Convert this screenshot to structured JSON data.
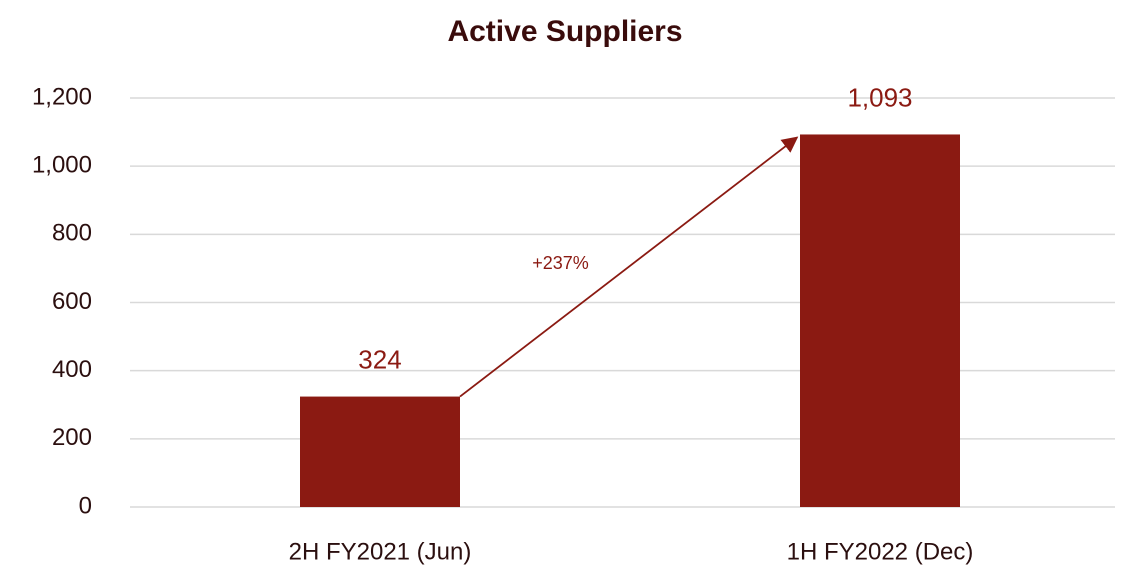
{
  "chart_data": {
    "type": "bar",
    "title": "Active Suppliers",
    "categories": [
      "2H FY2021 (Jun)",
      "1H FY2022 (Dec)"
    ],
    "values": [
      324,
      1093
    ],
    "value_labels": [
      "324",
      "1,093"
    ],
    "color": "#8b1a12",
    "ylim": [
      0,
      1200
    ],
    "yticks": [
      0,
      200,
      400,
      600,
      800,
      {
        "value": 1000,
        "label": "1,000"
      },
      {
        "value": 1200,
        "label": "1,200"
      }
    ],
    "grid": true,
    "annotations": [
      "+237%"
    ]
  }
}
